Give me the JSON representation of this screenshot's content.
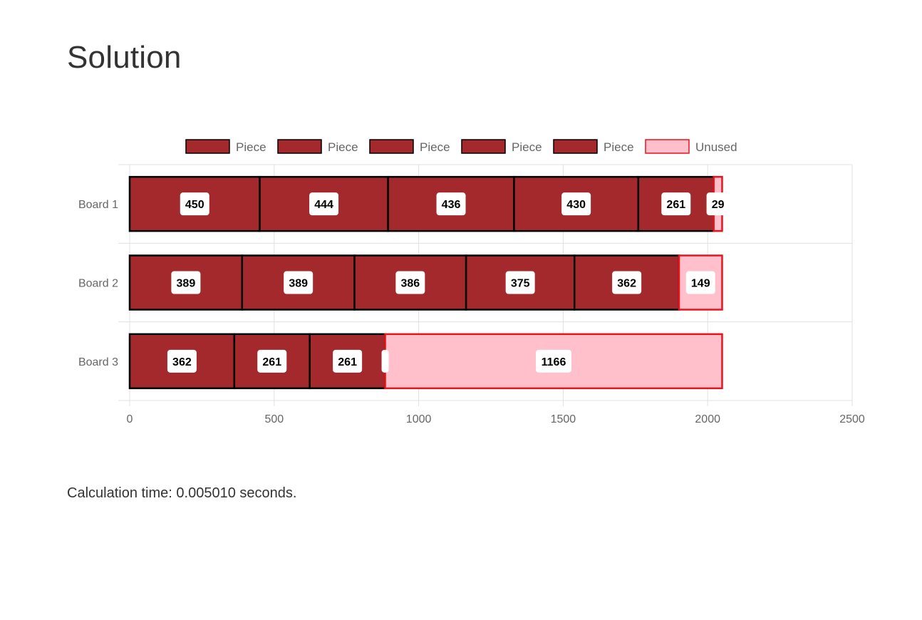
{
  "page": {
    "title": "Solution",
    "calculation_label": "Calculation time:",
    "calculation_value": "0.005010 seconds."
  },
  "colors": {
    "piece_fill": "#a3292d",
    "piece_border": "#000000",
    "unused_fill": "#ffc0cb",
    "unused_border": "#e8141c",
    "grid": "#e0e0e0",
    "label_bg": "#ffffff"
  },
  "chart_data": {
    "type": "bar",
    "orientation": "horizontal",
    "stacked": true,
    "legend_position": "top",
    "legend": [
      {
        "label": "Piece",
        "kind": "piece"
      },
      {
        "label": "Piece",
        "kind": "piece"
      },
      {
        "label": "Piece",
        "kind": "piece"
      },
      {
        "label": "Piece",
        "kind": "piece"
      },
      {
        "label": "Piece",
        "kind": "piece"
      },
      {
        "label": "Unused",
        "kind": "unused"
      }
    ],
    "categories": [
      "Board 1",
      "Board 2",
      "Board 3"
    ],
    "boards": [
      {
        "name": "Board 1",
        "segments": [
          {
            "value": 450,
            "kind": "piece"
          },
          {
            "value": 444,
            "kind": "piece"
          },
          {
            "value": 436,
            "kind": "piece"
          },
          {
            "value": 430,
            "kind": "piece"
          },
          {
            "value": 261,
            "kind": "piece"
          },
          {
            "value": 29,
            "kind": "unused"
          }
        ]
      },
      {
        "name": "Board 2",
        "segments": [
          {
            "value": 389,
            "kind": "piece"
          },
          {
            "value": 389,
            "kind": "piece"
          },
          {
            "value": 386,
            "kind": "piece"
          },
          {
            "value": 375,
            "kind": "piece"
          },
          {
            "value": 362,
            "kind": "piece"
          },
          {
            "value": 149,
            "kind": "unused"
          }
        ]
      },
      {
        "name": "Board 3",
        "segments": [
          {
            "value": 362,
            "kind": "piece"
          },
          {
            "value": 261,
            "kind": "piece"
          },
          {
            "value": 261,
            "kind": "piece"
          },
          {
            "value": 0,
            "kind": "piece"
          },
          {
            "value": 0,
            "kind": "piece"
          },
          {
            "value": 1166,
            "kind": "unused"
          }
        ]
      }
    ],
    "xlim": [
      0,
      2500
    ],
    "x_ticks": [
      0,
      500,
      1000,
      1500,
      2000,
      2500
    ],
    "grid": true
  }
}
